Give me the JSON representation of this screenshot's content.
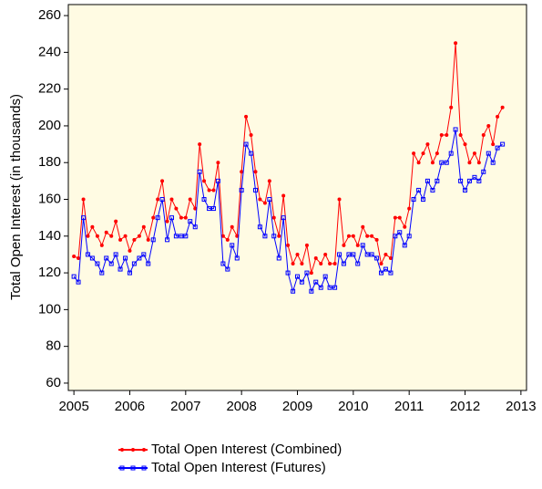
{
  "chart_data": {
    "type": "line",
    "y_label": "Total Open Interest (in thousands)",
    "x": [
      2005,
      2005.08,
      2005.17,
      2005.25,
      2005.33,
      2005.42,
      2005.5,
      2005.58,
      2005.67,
      2005.75,
      2005.83,
      2005.92,
      2006,
      2006.08,
      2006.17,
      2006.25,
      2006.33,
      2006.42,
      2006.5,
      2006.58,
      2006.67,
      2006.75,
      2006.83,
      2006.92,
      2007,
      2007.08,
      2007.17,
      2007.25,
      2007.33,
      2007.42,
      2007.5,
      2007.58,
      2007.67,
      2007.75,
      2007.83,
      2007.92,
      2008,
      2008.08,
      2008.17,
      2008.25,
      2008.33,
      2008.42,
      2008.5,
      2008.58,
      2008.67,
      2008.75,
      2008.83,
      2008.92,
      2009,
      2009.08,
      2009.17,
      2009.25,
      2009.33,
      2009.42,
      2009.5,
      2009.58,
      2009.67,
      2009.75,
      2009.83,
      2009.92,
      2010,
      2010.08,
      2010.17,
      2010.25,
      2010.33,
      2010.42,
      2010.5,
      2010.58,
      2010.67,
      2010.75,
      2010.83,
      2010.92,
      2011,
      2011.08,
      2011.17,
      2011.25,
      2011.33,
      2011.42,
      2011.5,
      2011.58,
      2011.67,
      2011.75,
      2011.83,
      2011.92,
      2012,
      2012.08,
      2012.17,
      2012.25,
      2012.33,
      2012.42,
      2012.5,
      2012.58,
      2012.67
    ],
    "series": [
      {
        "name": "Total Open Interest (Combined)",
        "color": "#ff0000",
        "marker": "circle",
        "values": [
          129,
          128,
          160,
          140,
          145,
          140,
          135,
          142,
          140,
          148,
          138,
          140,
          132,
          138,
          140,
          145,
          138,
          150,
          160,
          170,
          148,
          160,
          155,
          150,
          150,
          160,
          155,
          190,
          170,
          165,
          165,
          180,
          140,
          138,
          145,
          140,
          175,
          205,
          195,
          175,
          160,
          158,
          170,
          150,
          140,
          162,
          135,
          125,
          130,
          125,
          135,
          120,
          128,
          125,
          130,
          125,
          125,
          160,
          135,
          140,
          140,
          135,
          145,
          140,
          140,
          138,
          125,
          130,
          128,
          150,
          150,
          145,
          155,
          185,
          180,
          185,
          190,
          180,
          185,
          195,
          195,
          210,
          245,
          195,
          190,
          180,
          185,
          180,
          195,
          200,
          190,
          205,
          210
        ]
      },
      {
        "name": "Total Open Interest (Futures)",
        "color": "#0000ff",
        "marker": "square",
        "values": [
          118,
          115,
          150,
          130,
          128,
          125,
          120,
          128,
          125,
          130,
          122,
          128,
          120,
          125,
          128,
          130,
          125,
          138,
          150,
          160,
          138,
          150,
          140,
          140,
          140,
          148,
          145,
          175,
          160,
          155,
          155,
          170,
          125,
          122,
          135,
          128,
          165,
          190,
          185,
          165,
          145,
          140,
          160,
          140,
          128,
          150,
          120,
          110,
          118,
          115,
          120,
          110,
          115,
          112,
          118,
          112,
          112,
          130,
          125,
          130,
          130,
          125,
          135,
          130,
          130,
          128,
          120,
          122,
          120,
          140,
          142,
          135,
          140,
          160,
          165,
          160,
          170,
          165,
          170,
          180,
          180,
          185,
          198,
          170,
          165,
          170,
          172,
          170,
          175,
          185,
          180,
          188,
          190
        ]
      }
    ],
    "xlim": [
      2004.9,
      2013.1
    ],
    "xticks": [
      2005,
      2006,
      2007,
      2008,
      2009,
      2010,
      2011,
      2012,
      2013
    ],
    "ylim": [
      56,
      266
    ],
    "yticks": [
      60,
      80,
      100,
      120,
      140,
      160,
      180,
      200,
      220,
      240,
      260
    ],
    "grid": false,
    "legend": "bottom"
  }
}
